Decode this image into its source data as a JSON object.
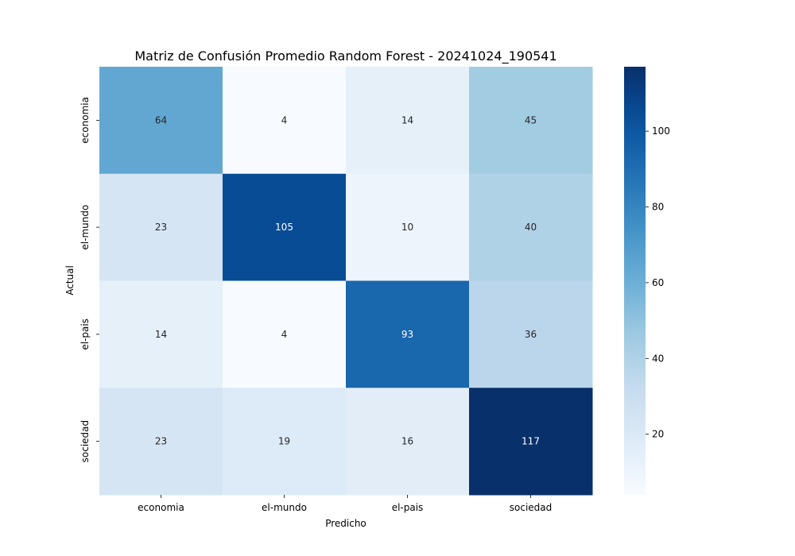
{
  "chart_data": {
    "type": "heatmap",
    "title": "Matriz de Confusión Promedio Random Forest - 20241024_190541",
    "xlabel": "Predicho",
    "ylabel": "Actual",
    "x_categories": [
      "economia",
      "el-mundo",
      "el-pais",
      "sociedad"
    ],
    "y_categories": [
      "economia",
      "el-mundo",
      "el-pais",
      "sociedad"
    ],
    "values": [
      [
        64,
        4,
        14,
        45
      ],
      [
        23,
        105,
        10,
        40
      ],
      [
        14,
        4,
        93,
        36
      ],
      [
        23,
        19,
        16,
        117
      ]
    ],
    "colorbar": {
      "min": 4,
      "max": 117,
      "ticks": [
        20,
        40,
        60,
        80,
        100
      ],
      "colormap": "Blues"
    },
    "grid": false
  }
}
